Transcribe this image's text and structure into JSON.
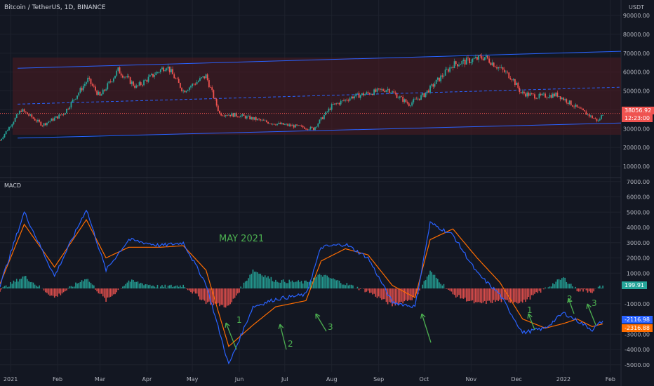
{
  "header": {
    "title": "Bitcoin / TetherUS, 1D, BINANCE",
    "currency": "USDT"
  },
  "macd": {
    "title": "MACD"
  },
  "price_axis": {
    "ticks": [
      "90000.00",
      "80000.00",
      "70000.00",
      "60000.00",
      "50000.00",
      "40000.00",
      "30000.00",
      "20000.00",
      "10000.00"
    ],
    "current_price": "38056.92",
    "countdown": "12:23:00"
  },
  "macd_axis": {
    "ticks": [
      "7000.00",
      "6000.00",
      "5000.00",
      "4000.00",
      "3000.00",
      "2000.00",
      "1000.00",
      "-1000.00",
      "-3000.00",
      "-4000.00",
      "-5000.00"
    ],
    "hist_label": "199.91",
    "macd_label": "-2116.98",
    "signal_label": "-2316.88"
  },
  "time_axis": [
    "2021",
    "Feb",
    "Mar",
    "Apr",
    "May",
    "Jun",
    "Jul",
    "Aug",
    "Sep",
    "Oct",
    "Nov",
    "Dec",
    "2022",
    "Feb"
  ],
  "annotations": {
    "may": "MAY 2021",
    "marks": [
      "1",
      "2",
      "3",
      "1",
      "2",
      "3"
    ]
  },
  "colors": {
    "bg": "#131722",
    "up": "#26a69a",
    "down": "#ef5350",
    "channel": "#2962ff",
    "macd": "#2962ff",
    "signal": "#ff6d00",
    "annot": "#4caf50",
    "grid": "#1e222d"
  },
  "chart_data": {
    "type": "candlestick+macd",
    "price_series": {
      "name": "BTCUSDT 1D",
      "x": [
        "2020-12-25",
        "2021-01-08",
        "2021-01-22",
        "2021-02-05",
        "2021-02-21",
        "2021-03-01",
        "2021-03-13",
        "2021-03-25",
        "2021-04-14",
        "2021-04-25",
        "2021-05-10",
        "2021-05-19",
        "2021-06-01",
        "2021-06-22",
        "2021-07-20",
        "2021-08-01",
        "2021-08-15",
        "2021-09-07",
        "2021-09-21",
        "2021-10-01",
        "2021-10-20",
        "2021-11-10",
        "2021-11-28",
        "2021-12-04",
        "2021-12-15",
        "2021-12-28",
        "2022-01-10",
        "2022-01-24",
        "2022-01-27"
      ],
      "close": [
        23800,
        40000,
        32000,
        38000,
        56000,
        47000,
        61000,
        52000,
        63500,
        50000,
        58000,
        38000,
        37000,
        33000,
        30000,
        42000,
        47000,
        51000,
        43000,
        48000,
        64000,
        68000,
        57000,
        49000,
        47000,
        48000,
        41000,
        34000,
        38057
      ],
      "ylim": [
        0,
        95000
      ]
    },
    "channel": {
      "upper": {
        "start": [
          "2021-01-01",
          62000
        ],
        "end": [
          "2022-02-01",
          71000
        ]
      },
      "middle": {
        "start": [
          "2021-01-01",
          43000
        ],
        "end": [
          "2022-02-01",
          52000
        ]
      },
      "lower": {
        "start": [
          "2021-01-01",
          25000
        ],
        "end": [
          "2022-02-01",
          33000
        ]
      }
    },
    "macd_series": {
      "x": [
        "2020-12-25",
        "2021-01-10",
        "2021-01-30",
        "2021-02-20",
        "2021-03-05",
        "2021-03-20",
        "2021-04-10",
        "2021-04-25",
        "2021-05-10",
        "2021-05-25",
        "2021-06-10",
        "2021-06-25",
        "2021-07-15",
        "2021-07-25",
        "2021-08-10",
        "2021-08-25",
        "2021-09-10",
        "2021-09-25",
        "2021-10-05",
        "2021-10-20",
        "2021-11-05",
        "2021-11-20",
        "2021-12-05",
        "2021-12-20",
        "2022-01-01",
        "2022-01-10",
        "2022-01-20",
        "2022-01-27"
      ],
      "macd": [
        200,
        5000,
        800,
        5200,
        1200,
        3200,
        2800,
        3000,
        300,
        -5000,
        -1200,
        -700,
        -400,
        2700,
        2900,
        2000,
        -900,
        -1200,
        4300,
        3500,
        1000,
        -400,
        -2900,
        -2600,
        -1600,
        -2100,
        -2700,
        -2117
      ],
      "signal": [
        300,
        4200,
        1400,
        4500,
        2000,
        2700,
        2700,
        2800,
        1200,
        -3800,
        -2400,
        -1200,
        -800,
        1800,
        2600,
        2200,
        200,
        -600,
        3200,
        3900,
        2000,
        400,
        -2000,
        -2600,
        -2300,
        -2000,
        -2500,
        -2317
      ],
      "ylim": [
        -5700,
        7300
      ]
    }
  }
}
